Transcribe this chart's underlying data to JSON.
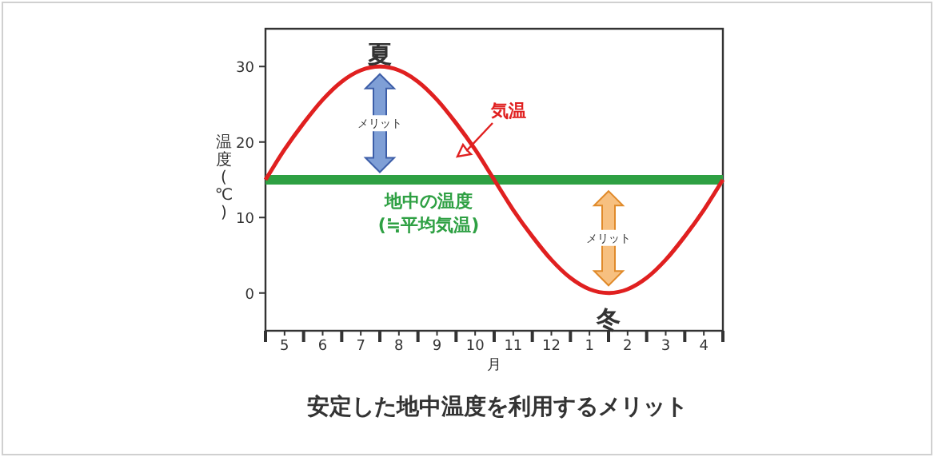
{
  "chart_data": {
    "type": "line",
    "title": "安定した地中温度を利用するメリット",
    "xlabel": "月",
    "ylabel": "温度(℃)",
    "categories": [
      null,
      "5",
      null,
      "6",
      null,
      "7",
      null,
      "8",
      null,
      "9",
      null,
      "10",
      null,
      "11",
      null,
      "12",
      null,
      "1",
      null,
      "2",
      null,
      "3",
      null,
      "4",
      null
    ],
    "series": [
      {
        "name": "気温",
        "color": "#e02020",
        "values": [
          15,
          19,
          22.5,
          25.6,
          28,
          29.5,
          30,
          29.5,
          28,
          25.6,
          22.5,
          19,
          15,
          11,
          7.5,
          4.4,
          2,
          0.5,
          0,
          0.5,
          2,
          4.4,
          7.5,
          11,
          15
        ]
      }
    ],
    "ylim": [
      -5,
      35
    ],
    "yticks": [
      0,
      10,
      20,
      30
    ],
    "ref_lines": [
      {
        "axis": "y",
        "value": 15,
        "label": "地中の温度 (≒平均気温)",
        "color": "#2ea043"
      }
    ],
    "annotations": [
      "夏",
      "冬",
      "メリット",
      "メリット"
    ],
    "grid": false,
    "legend": false,
    "marker": "none",
    "line_style": "solid"
  }
}
